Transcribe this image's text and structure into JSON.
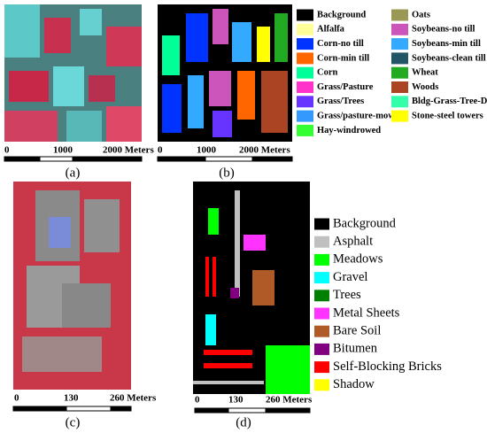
{
  "panels": [
    {
      "label": "(a)",
      "scale": [
        "0",
        "1000",
        "2000 Meters"
      ]
    },
    {
      "label": "(b)",
      "scale": [
        "0",
        "1000",
        "2000 Meters"
      ],
      "legend": [
        {
          "label": "Background",
          "color": "#000000"
        },
        {
          "label": "Alfalfa",
          "color": "#ffff99"
        },
        {
          "label": "Corn-no till",
          "color": "#0033ff"
        },
        {
          "label": "Corn-min till",
          "color": "#ff6600"
        },
        {
          "label": "Corn",
          "color": "#00ff99"
        },
        {
          "label": "Grass/Pasture",
          "color": "#ff33cc"
        },
        {
          "label": "Grass/Trees",
          "color": "#6633ff"
        },
        {
          "label": "Grass/pasture-mowed",
          "color": "#3399ff"
        },
        {
          "label": "Hay-windrowed",
          "color": "#33ff33"
        },
        {
          "label": "Oats",
          "color": "#999955"
        },
        {
          "label": "Soybeans-no till",
          "color": "#cc55bb"
        },
        {
          "label": "Soybeans-min till",
          "color": "#33aaff"
        },
        {
          "label": "Soybeans-clean till",
          "color": "#225566"
        },
        {
          "label": "Wheat",
          "color": "#22aa22"
        },
        {
          "label": "Woods",
          "color": "#aa4422"
        },
        {
          "label": "Bldg-Grass-Tree-Drives",
          "color": "#33ffaa"
        },
        {
          "label": "Stone-steel towers",
          "color": "#ffff00"
        }
      ]
    },
    {
      "label": "(c)",
      "scale": [
        "0",
        "130",
        "260 Meters"
      ]
    },
    {
      "label": "(d)",
      "scale": [
        "0",
        "130",
        "260 Meters"
      ],
      "legend": [
        {
          "label": "Background",
          "color": "#000000"
        },
        {
          "label": "Asphalt",
          "color": "#c0c0c0"
        },
        {
          "label": "Meadows",
          "color": "#00ff00"
        },
        {
          "label": "Gravel",
          "color": "#00ffff"
        },
        {
          "label": "Trees",
          "color": "#008000"
        },
        {
          "label": "Metal Sheets",
          "color": "#ff33ff"
        },
        {
          "label": "Bare Soil",
          "color": "#b05a28"
        },
        {
          "label": "Bitumen",
          "color": "#800080"
        },
        {
          "label": "Self-Blocking Bricks",
          "color": "#ff0000"
        },
        {
          "label": "Shadow",
          "color": "#ffff00"
        }
      ]
    }
  ]
}
